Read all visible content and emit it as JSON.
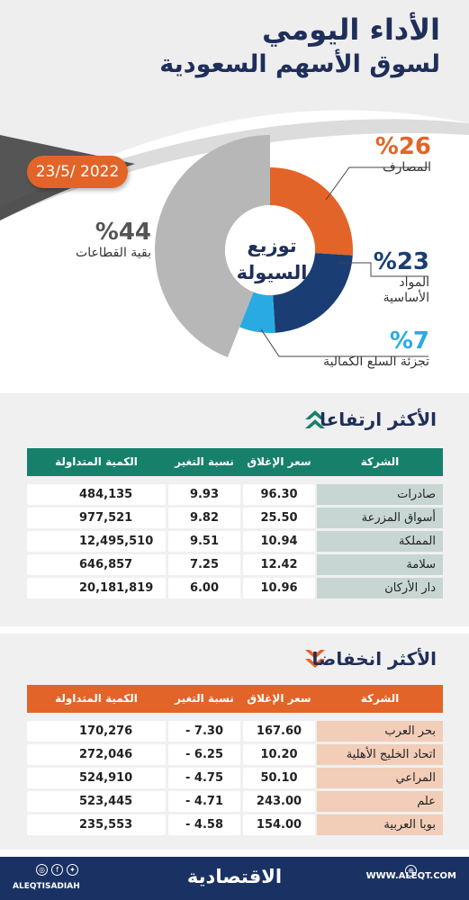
{
  "header": {
    "title_line1": "الأداء اليومي",
    "title_line2": "لسوق الأسهم السعودية",
    "date": "23/5/ 2022"
  },
  "chart_data": {
    "type": "pie",
    "title": "توزيع السيولة",
    "center_label_line1": "توزيع",
    "center_label_line2": "السيولة",
    "slices": [
      {
        "label": "المصارف",
        "value": 26,
        "pct_text": "%26",
        "color": "#e36428"
      },
      {
        "label_line1": "المواد",
        "label_line2": "الأساسية",
        "label": "المواد الأساسية",
        "value": 23,
        "pct_text": "%23",
        "color": "#1a3e73"
      },
      {
        "label": "تجزئة السلع الكمالية",
        "value": 7,
        "pct_text": "%7",
        "color": "#29abe2"
      },
      {
        "label": "بقية القطاعات",
        "value": 44,
        "pct_text": "%44",
        "color": "#b7b7b7"
      }
    ]
  },
  "gainers": {
    "title": "الأكثر ارتفاعا",
    "header_color": "#17806b",
    "company_cell_color": "#c7d6d3",
    "columns": [
      "الشركة",
      "سعر الإغلاق",
      "نسبة التغير %",
      "الكمية المتداولة"
    ],
    "rows": [
      {
        "company": "صادرات",
        "close": "96.30",
        "change": "9.93",
        "qty": "484,135"
      },
      {
        "company": "أسواق المزرعة",
        "close": "25.50",
        "change": "9.82",
        "qty": "977,521"
      },
      {
        "company": "المملكة",
        "close": "10.94",
        "change": "9.51",
        "qty": "12,495,510"
      },
      {
        "company": "سلامة",
        "close": "12.42",
        "change": "7.25",
        "qty": "646,857"
      },
      {
        "company": "دار الأركان",
        "close": "10.96",
        "change": "6.00",
        "qty": "20,181,819"
      }
    ]
  },
  "losers": {
    "title": "الأكثر انخفاضا",
    "header_color": "#e36428",
    "company_cell_color": "#f2cdb8",
    "columns": [
      "الشركة",
      "سعر الإغلاق",
      "نسبة التغير %",
      "الكمية المتداولة"
    ],
    "rows": [
      {
        "company": "بحر العرب",
        "close": "167.60",
        "change": "- 7.30",
        "qty": "170,276"
      },
      {
        "company": "اتحاد الخليج الأهلية",
        "close": "10.20",
        "change": "- 6.25",
        "qty": "272,046"
      },
      {
        "company": "المراعي",
        "close": "50.10",
        "change": "- 4.75",
        "qty": "524,910"
      },
      {
        "company": "علم",
        "close": "243.00",
        "change": "- 4.71",
        "qty": "523,445"
      },
      {
        "company": "بوبا العربية",
        "close": "154.00",
        "change": "- 4.58",
        "qty": "235,553"
      }
    ]
  },
  "footer": {
    "site": "WWW.ALEQT.COM",
    "handle": "ALEQTISADIAH",
    "brand": "الاقتصادية"
  }
}
